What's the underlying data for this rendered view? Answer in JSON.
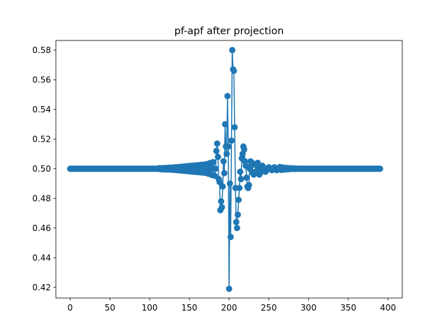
{
  "chart_data": {
    "type": "line",
    "title": "pf-apf after projection",
    "xlabel": "",
    "ylabel": "",
    "xlim": [
      -18,
      418
    ],
    "ylim": [
      0.4128,
      0.5865
    ],
    "grid": false,
    "legend": "none",
    "marker": "circle",
    "x_ticks": [
      0,
      50,
      100,
      150,
      200,
      250,
      300,
      350,
      400
    ],
    "y_ticks": [
      0.42,
      0.44,
      0.46,
      0.48,
      0.5,
      0.52,
      0.54,
      0.56,
      0.58
    ],
    "y_tick_labels": [
      "0.42",
      "0.44",
      "0.46",
      "0.48",
      "0.50",
      "0.52",
      "0.54",
      "0.56",
      "0.58"
    ],
    "series": [
      {
        "name": "",
        "color": "#1f77b4",
        "x_start": 0,
        "x_step": 1,
        "values": [
          0.5,
          0.5,
          0.5,
          0.5,
          0.5,
          0.5,
          0.5,
          0.5,
          0.5,
          0.5,
          0.5,
          0.5,
          0.5,
          0.5,
          0.5,
          0.5,
          0.5,
          0.5,
          0.5,
          0.5,
          0.5,
          0.5,
          0.5,
          0.5,
          0.5,
          0.5,
          0.5,
          0.5,
          0.5,
          0.5,
          0.5,
          0.5,
          0.5,
          0.5,
          0.5,
          0.5,
          0.5,
          0.5,
          0.5,
          0.5,
          0.5,
          0.5,
          0.5,
          0.5,
          0.5,
          0.5,
          0.5,
          0.5,
          0.5,
          0.5,
          0.5,
          0.5,
          0.5,
          0.5,
          0.5,
          0.5,
          0.5,
          0.5,
          0.5,
          0.5,
          0.5,
          0.5,
          0.5,
          0.5,
          0.5,
          0.5,
          0.5,
          0.5,
          0.5,
          0.5,
          0.5,
          0.5,
          0.5,
          0.5,
          0.5,
          0.5,
          0.5,
          0.5,
          0.5,
          0.5,
          0.5,
          0.5,
          0.5,
          0.5,
          0.5,
          0.5,
          0.5,
          0.5,
          0.5,
          0.5,
          0.5,
          0.5,
          0.5,
          0.5,
          0.5,
          0.5,
          0.5,
          0.5,
          0.5,
          0.5,
          0.5,
          0.5,
          0.5,
          0.5,
          0.5,
          0.5,
          0.5,
          0.5,
          0.5,
          0.5,
          0.5,
          0.5,
          0.5,
          0.5,
          0.5,
          0.5,
          0.5,
          0.5,
          0.5,
          0.5,
          0.5,
          0.5,
          0.5,
          0.5,
          0.5,
          0.5,
          0.5,
          0.5,
          0.5,
          0.5,
          0.5,
          0.5,
          0.5,
          0.5,
          0.5,
          0.5,
          0.5,
          0.5,
          0.5,
          0.5,
          0.5,
          0.5,
          0.5,
          0.5,
          0.5,
          0.5,
          0.5,
          0.5,
          0.5,
          0.5,
          0.5,
          0.5,
          0.5,
          0.5,
          0.5,
          0.5,
          0.5,
          0.5,
          0.5,
          0.5,
          0.5,
          0.5,
          0.5,
          0.5,
          0.5,
          0.5,
          0.5,
          0.5,
          0.5,
          0.5,
          0.5,
          0.5,
          0.5,
          0.5,
          0.5,
          0.5,
          0.5,
          0.5,
          0.5,
          0.5,
          0.5,
          0.5,
          0.5,
          0.5,
          0.5,
          0.5,
          0.5,
          0.5,
          0.5,
          0.5,
          0.5,
          0.5,
          0.5,
          0.5,
          0.5,
          0.5,
          0.5,
          0.5,
          0.5,
          0.5,
          0.5,
          0.5,
          0.5,
          0.5,
          0.5,
          0.5,
          0.5,
          0.5,
          0.5,
          0.5,
          0.5,
          0.5,
          0.5,
          0.5,
          0.5,
          0.5,
          0.5,
          0.5,
          0.5,
          0.5,
          0.5,
          0.5,
          0.5,
          0.5,
          0.5,
          0.5,
          0.5,
          0.5,
          0.5,
          0.5,
          0.5,
          0.5,
          0.5,
          0.5,
          0.5,
          0.5,
          0.5,
          0.5,
          0.5,
          0.5,
          0.5,
          0.5,
          0.5,
          0.5,
          0.5,
          0.5,
          0.5,
          0.5,
          0.5,
          0.5,
          0.5,
          0.5,
          0.5,
          0.5,
          0.5,
          0.5,
          0.5,
          0.5,
          0.5,
          0.5,
          0.5,
          0.5,
          0.5,
          0.5,
          0.5,
          0.5,
          0.5,
          0.5,
          0.5,
          0.5,
          0.5,
          0.5,
          0.5,
          0.5,
          0.5,
          0.5,
          0.5,
          0.5,
          0.5,
          0.5,
          0.5,
          0.5,
          0.5,
          0.5,
          0.5,
          0.5,
          0.5,
          0.5,
          0.5,
          0.5,
          0.5,
          0.5,
          0.5,
          0.5,
          0.5,
          0.5,
          0.5,
          0.5,
          0.5,
          0.5,
          0.5,
          0.5,
          0.5,
          0.5,
          0.5,
          0.5,
          0.5,
          0.5,
          0.5,
          0.5,
          0.5,
          0.5,
          0.5,
          0.5,
          0.5,
          0.5,
          0.5,
          0.5,
          0.5,
          0.5,
          0.5,
          0.5,
          0.5,
          0.5,
          0.5,
          0.5,
          0.5,
          0.5,
          0.5,
          0.5,
          0.5,
          0.5,
          0.5,
          0.5,
          0.5,
          0.5,
          0.5,
          0.5,
          0.5,
          0.5,
          0.5,
          0.5,
          0.5,
          0.5,
          0.5,
          0.5,
          0.5,
          0.5,
          0.5,
          0.5,
          0.5,
          0.5,
          0.5,
          0.5,
          0.5,
          0.5,
          0.5,
          0.5,
          0.5,
          0.5,
          0.5,
          0.5,
          0.5,
          0.5,
          0.5,
          0.5,
          0.5,
          0.5,
          0.5,
          0.5,
          0.5,
          0.5,
          0.5,
          0.5,
          0.5,
          0.5,
          0.5,
          0.5,
          0.5,
          0.5,
          0.5,
          0.5,
          0.5,
          0.5,
          0.5,
          0.5,
          0.5,
          0.5,
          0.5,
          0.5,
          0.5
        ],
        "overrides": [
          [
            112,
            0.5004
          ],
          [
            114,
            0.4996
          ],
          [
            116,
            0.5005
          ],
          [
            118,
            0.4995
          ],
          [
            120,
            0.5006
          ],
          [
            122,
            0.4994
          ],
          [
            124,
            0.5007
          ],
          [
            126,
            0.4993
          ],
          [
            128,
            0.5008
          ],
          [
            130,
            0.4992
          ],
          [
            132,
            0.501
          ],
          [
            134,
            0.499
          ],
          [
            136,
            0.5012
          ],
          [
            138,
            0.4988
          ],
          [
            140,
            0.5014
          ],
          [
            142,
            0.4986
          ],
          [
            144,
            0.5016
          ],
          [
            146,
            0.4984
          ],
          [
            148,
            0.5018
          ],
          [
            150,
            0.4982
          ],
          [
            152,
            0.502
          ],
          [
            154,
            0.498
          ],
          [
            156,
            0.5022
          ],
          [
            158,
            0.4978
          ],
          [
            160,
            0.5024
          ],
          [
            162,
            0.4976
          ],
          [
            164,
            0.5026
          ],
          [
            166,
            0.4974
          ],
          [
            168,
            0.5028
          ],
          [
            170,
            0.4972
          ],
          [
            172,
            0.5032
          ],
          [
            174,
            0.4966
          ],
          [
            176,
            0.5038
          ],
          [
            178,
            0.4958
          ],
          [
            180,
            0.5045
          ],
          [
            182,
            0.4952
          ],
          [
            184,
            0.512
          ],
          [
            185,
            0.517
          ],
          [
            186,
            0.508
          ],
          [
            187,
            0.493
          ],
          [
            188,
            0.491
          ],
          [
            189,
            0.472
          ],
          [
            190,
            0.478
          ],
          [
            191,
            0.474
          ],
          [
            192,
            0.488
          ],
          [
            193,
            0.505
          ],
          [
            194,
            0.497
          ],
          [
            195,
            0.53
          ],
          [
            196,
            0.515
          ],
          [
            197,
            0.51
          ],
          [
            198,
            0.549
          ],
          [
            199,
            0.515
          ],
          [
            200,
            0.419
          ],
          [
            201,
            0.49
          ],
          [
            202,
            0.454
          ],
          [
            203,
            0.519
          ],
          [
            204,
            0.58
          ],
          [
            205,
            0.567
          ],
          [
            206,
            0.566
          ],
          [
            207,
            0.528
          ],
          [
            208,
            0.487
          ],
          [
            209,
            0.464
          ],
          [
            210,
            0.46
          ],
          [
            211,
            0.469
          ],
          [
            212,
            0.479
          ],
          [
            213,
            0.487
          ],
          [
            214,
            0.498
          ],
          [
            215,
            0.493
          ],
          [
            216,
            0.507
          ],
          [
            217,
            0.51
          ],
          [
            218,
            0.515
          ],
          [
            219,
            0.513
          ],
          [
            220,
            0.505
          ],
          [
            221,
            0.502
          ],
          [
            222,
            0.494
          ],
          [
            223,
            0.488
          ],
          [
            224,
            0.487
          ],
          [
            225,
            0.489
          ],
          [
            226,
            0.5
          ],
          [
            227,
            0.505
          ],
          [
            228,
            0.502
          ],
          [
            229,
            0.504
          ],
          [
            230,
            0.497
          ],
          [
            231,
            0.496
          ],
          [
            232,
            0.497
          ],
          [
            233,
            0.498
          ],
          [
            234,
            0.503
          ],
          [
            235,
            0.502
          ],
          [
            236,
            0.504
          ],
          [
            237,
            0.501
          ],
          [
            238,
            0.496
          ],
          [
            239,
            0.497
          ],
          [
            240,
            0.498
          ],
          [
            241,
            0.5
          ],
          [
            242,
            0.502
          ],
          [
            243,
            0.501
          ],
          [
            244,
            0.5
          ],
          [
            245,
            0.499
          ],
          [
            246,
            0.498
          ],
          [
            247,
            0.499
          ],
          [
            248,
            0.5
          ],
          [
            249,
            0.5
          ],
          [
            250,
            0.501
          ],
          [
            251,
            0.5
          ],
          [
            252,
            0.5
          ],
          [
            253,
            0.5
          ],
          [
            254,
            0.499
          ],
          [
            255,
            0.5
          ],
          [
            256,
            0.5
          ],
          [
            257,
            0.501
          ],
          [
            258,
            0.5
          ],
          [
            259,
            0.5
          ],
          [
            260,
            0.499
          ],
          [
            262,
            0.5
          ],
          [
            264,
            0.5012
          ],
          [
            266,
            0.4992
          ],
          [
            268,
            0.5008
          ],
          [
            270,
            0.4994
          ],
          [
            272,
            0.5006
          ],
          [
            274,
            0.4996
          ],
          [
            276,
            0.5004
          ],
          [
            278,
            0.4998
          ],
          [
            280,
            0.5003
          ],
          [
            282,
            0.4998
          ],
          [
            284,
            0.5002
          ]
        ]
      }
    ]
  }
}
